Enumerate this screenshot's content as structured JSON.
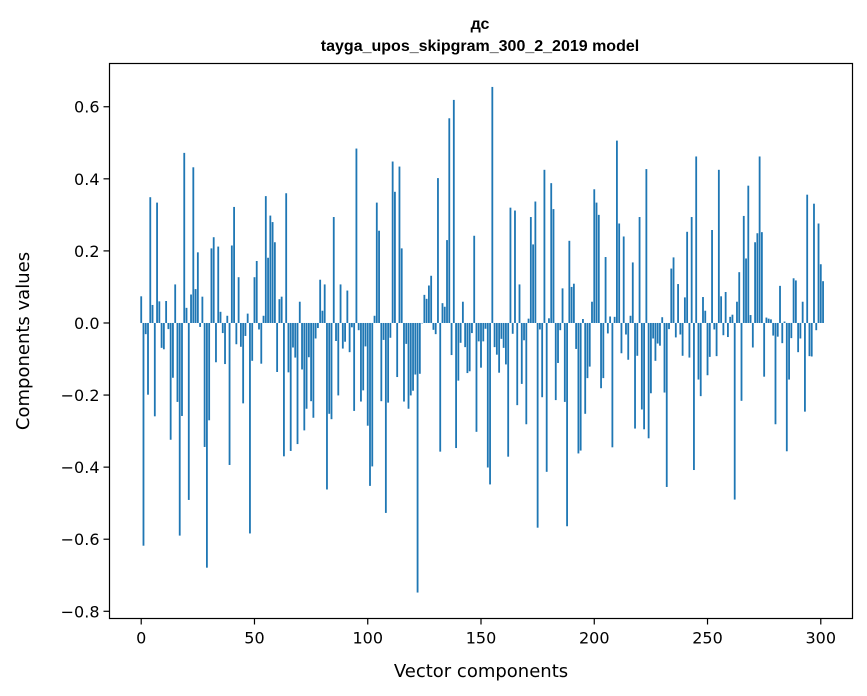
{
  "chart_data": {
    "type": "bar",
    "title": "дс",
    "subtitle": "tayga_upos_skipgram_300_2_2019 model",
    "xlabel": "Vector components",
    "ylabel": "Components values",
    "xlim": [
      -14,
      314
    ],
    "ylim": [
      -0.82,
      0.72
    ],
    "xticks": [
      0,
      50,
      100,
      150,
      200,
      250,
      300
    ],
    "yticks": [
      -0.8,
      -0.6,
      -0.4,
      -0.2,
      0.0,
      0.2,
      0.4,
      0.6
    ],
    "ytick_labels": [
      "−0.8",
      "−0.6",
      "−0.4",
      "−0.2",
      "0.0",
      "0.2",
      "0.4",
      "0.6"
    ],
    "grid": false,
    "bar_color": "#1f77b4",
    "values": [
      0.074,
      -0.618,
      -0.031,
      -0.199,
      0.349,
      0.05,
      -0.259,
      0.334,
      0.06,
      -0.069,
      -0.073,
      0.061,
      -0.017,
      -0.324,
      -0.152,
      0.107,
      -0.219,
      -0.59,
      -0.258,
      0.472,
      0.042,
      -0.491,
      0.079,
      0.432,
      0.094,
      0.196,
      -0.011,
      0.073,
      -0.344,
      -0.679,
      -0.27,
      0.207,
      0.238,
      -0.109,
      0.212,
      0.031,
      -0.028,
      -0.114,
      0.02,
      -0.394,
      0.215,
      0.322,
      -0.059,
      0.127,
      -0.066,
      -0.223,
      -0.036,
      0.026,
      -0.584,
      -0.105,
      0.127,
      0.172,
      -0.018,
      -0.113,
      0.02,
      0.352,
      0.181,
      0.298,
      0.28,
      0.224,
      -0.136,
      0.066,
      0.073,
      -0.37,
      0.36,
      -0.137,
      -0.355,
      -0.068,
      -0.096,
      -0.336,
      0.059,
      -0.129,
      -0.298,
      -0.238,
      -0.095,
      -0.217,
      -0.263,
      -0.043,
      -0.014,
      0.12,
      0.034,
      0.107,
      -0.462,
      -0.252,
      -0.267,
      0.294,
      -0.05,
      -0.201,
      0.107,
      -0.071,
      -0.052,
      0.09,
      -0.081,
      -0.012,
      -0.244,
      0.484,
      -0.02,
      -0.218,
      -0.187,
      -0.065,
      -0.285,
      -0.452,
      -0.398,
      0.02,
      0.334,
      0.256,
      -0.217,
      -0.047,
      -0.527,
      -0.221,
      -0.041,
      0.448,
      0.364,
      -0.15,
      0.434,
      0.207,
      -0.218,
      -0.058,
      -0.238,
      -0.201,
      -0.188,
      -0.143,
      -0.748,
      -0.141,
      -0.001,
      0.078,
      0.067,
      0.104,
      0.131,
      -0.019,
      -0.031,
      0.402,
      -0.357,
      0.055,
      0.045,
      0.23,
      0.568,
      -0.089,
      0.619,
      -0.347,
      -0.16,
      -0.055,
      0.059,
      -0.067,
      -0.139,
      -0.134,
      -0.028,
      0.242,
      -0.302,
      -0.051,
      -0.124,
      -0.051,
      -0.016,
      -0.401,
      -0.448,
      0.655,
      -0.067,
      -0.088,
      -0.138,
      -0.044,
      -0.069,
      -0.115,
      -0.371,
      0.32,
      -0.03,
      0.312,
      -0.228,
      0.107,
      -0.169,
      -0.048,
      -0.281,
      0.012,
      0.294,
      0.218,
      0.337,
      -0.568,
      -0.018,
      -0.206,
      0.425,
      -0.413,
      0.013,
      0.388,
      0.316,
      -0.214,
      -0.111,
      -0.02,
      0.096,
      -0.219,
      -0.564,
      0.228,
      0.1,
      0.109,
      -0.072,
      -0.362,
      -0.354,
      0.011,
      -0.252,
      -0.153,
      -0.121,
      0.059,
      0.371,
      0.334,
      0.3,
      -0.181,
      -0.153,
      0.183,
      -0.029,
      0.018,
      -0.345,
      0.017,
      0.506,
      0.276,
      -0.084,
      0.24,
      -0.032,
      -0.102,
      0.02,
      0.168,
      -0.293,
      -0.091,
      0.294,
      -0.24,
      -0.295,
      0.427,
      -0.32,
      -0.195,
      -0.043,
      -0.105,
      -0.057,
      -0.063,
      0.016,
      -0.193,
      -0.455,
      -0.017,
      0.151,
      0.182,
      -0.04,
      0.108,
      -0.032,
      -0.091,
      0.071,
      0.253,
      -0.096,
      0.294,
      -0.408,
      0.462,
      -0.157,
      -0.203,
      0.072,
      0.034,
      -0.145,
      -0.094,
      0.258,
      -0.018,
      -0.092,
      0.425,
      0.074,
      -0.034,
      0.086,
      -0.039,
      0.017,
      0.023,
      -0.49,
      0.059,
      0.141,
      -0.216,
      0.297,
      0.179,
      0.381,
      0.022,
      -0.068,
      0.224,
      0.249,
      0.462,
      0.252,
      -0.149,
      0.015,
      0.012,
      0.01,
      -0.035,
      -0.281,
      -0.038,
      0.103,
      -0.056,
      0.004,
      -0.356,
      -0.157,
      -0.042,
      0.124,
      0.118,
      -0.081,
      -0.043,
      0.059,
      -0.246,
      0.356,
      -0.092,
      -0.093,
      0.331,
      -0.02,
      0.276,
      0.163,
      0.116
    ]
  }
}
